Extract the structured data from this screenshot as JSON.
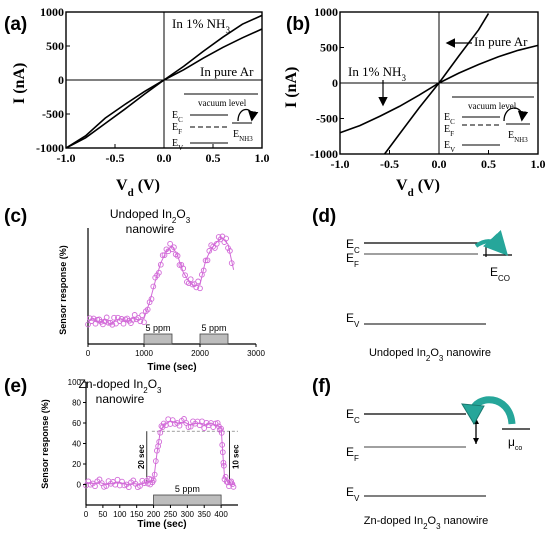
{
  "panels": {
    "a": {
      "label": "(a)",
      "in_nh3": "In 1% NH",
      "nh3_sub": "3",
      "in_ar": "In pure Ar",
      "vacuum": "vacuum level",
      "ec": "E",
      "ec_sub": "C",
      "ef": "E",
      "ef_sub": "F",
      "ev": "E",
      "ev_sub": "V",
      "enh3": "E",
      "enh3_sub": "NH3"
    },
    "b": {
      "label": "(b)",
      "in_nh3": "In 1% NH",
      "nh3_sub": "3",
      "in_ar": "In pure Ar",
      "vacuum": "vacuum level",
      "ec": "E",
      "ec_sub": "C",
      "ef": "E",
      "ef_sub": "F",
      "ev": "E",
      "ev_sub": "V",
      "enh3": "E",
      "enh3_sub": "NH3"
    },
    "c": {
      "label": "(c)",
      "title1": "Undoped In",
      "title_sub": "2",
      "title_mid": "O",
      "title_sub2": "3",
      "title2": "nanowire",
      "bar1": "5 ppm",
      "bar2": "5 ppm"
    },
    "d": {
      "label": "(d)",
      "ec": "E",
      "ec_sub": "C",
      "ef": "E",
      "ef_sub": "F",
      "eco": "E",
      "eco_sub": "CO",
      "ev": "E",
      "ev_sub": "V",
      "caption": "Undoped In",
      "cap_sub": "2",
      "cap_mid": "O",
      "cap_sub2": "3",
      "cap_end": " nanowire"
    },
    "e": {
      "label": "(e)",
      "title1": "Zn-doped In",
      "title_sub": "2",
      "title_mid": "O",
      "title_sub2": "3",
      "title2": "nanowire",
      "bar": "5 ppm",
      "ann1": "20 sec",
      "ann2": "10 sec"
    },
    "f": {
      "label": "(f)",
      "ec": "E",
      "ec_sub": "C",
      "ef": "E",
      "ef_sub": "F",
      "mu": "μ",
      "mu_sub": "co",
      "ev": "E",
      "ev_sub": "V",
      "caption": "Zn-doped In",
      "cap_sub": "2",
      "cap_mid": "O",
      "cap_sub2": "3",
      "cap_end": " nanowire"
    }
  },
  "chart_data": [
    {
      "type": "line",
      "panel": "a",
      "xlabel": "V",
      "xlabel_sub": "d",
      "xlabel_unit": " (V)",
      "ylabel": "I (nA)",
      "xlim": [
        -1.0,
        1.0
      ],
      "ylim": [
        -1000,
        1000
      ],
      "xticks": [
        -1.0,
        -0.5,
        0.0,
        0.5,
        1.0
      ],
      "xtick_labels": [
        "-1.0",
        "-0.5",
        "0.0",
        "0.5",
        "1.0"
      ],
      "yticks": [
        -1000,
        -500,
        0,
        500,
        1000
      ],
      "ytick_labels": [
        "-1000",
        "-500",
        "0",
        "500",
        "1000"
      ],
      "series": [
        {
          "name": "In 1% NH3",
          "x": [
            -1.0,
            -0.8,
            -0.6,
            -0.4,
            -0.2,
            0.0,
            0.2,
            0.4,
            0.6,
            0.8,
            1.0
          ],
          "y": [
            -1000,
            -850,
            -640,
            -430,
            -210,
            0,
            200,
            420,
            630,
            820,
            950
          ]
        },
        {
          "name": "In pure Ar",
          "x": [
            -1.0,
            -0.8,
            -0.6,
            -0.4,
            -0.2,
            0.0,
            0.2,
            0.4,
            0.6,
            0.8,
            1.0
          ],
          "y": [
            -1000,
            -820,
            -560,
            -360,
            -170,
            0,
            150,
            320,
            480,
            620,
            750
          ]
        }
      ]
    },
    {
      "type": "line",
      "panel": "b",
      "xlabel": "V",
      "xlabel_sub": "d",
      "xlabel_unit": " (V)",
      "ylabel": "I (nA)",
      "xlim": [
        -1.0,
        1.0
      ],
      "ylim": [
        -1000,
        1000
      ],
      "xticks": [
        -1.0,
        -0.5,
        0.0,
        0.5,
        1.0
      ],
      "xtick_labels": [
        "-1.0",
        "-0.5",
        "0.0",
        "0.5",
        "1.0"
      ],
      "yticks": [
        -1000,
        -500,
        0,
        500,
        1000
      ],
      "ytick_labels": [
        "-1000",
        "-500",
        "0",
        "500",
        "1000"
      ],
      "series": [
        {
          "name": "In 1% NH3",
          "x": [
            -1.0,
            -0.8,
            -0.6,
            -0.4,
            -0.2,
            0.0,
            0.2,
            0.4,
            0.6,
            0.8,
            1.0
          ],
          "y": [
            -700,
            -600,
            -470,
            -330,
            -170,
            0,
            140,
            260,
            370,
            460,
            530
          ]
        },
        {
          "name": "In pure Ar",
          "x": [
            -0.55,
            -0.4,
            -0.2,
            0.0,
            0.2,
            0.4,
            0.5
          ],
          "y": [
            -1000,
            -720,
            -350,
            0,
            380,
            750,
            980
          ]
        }
      ]
    },
    {
      "type": "scatter",
      "panel": "c",
      "xlabel": "Time (sec)",
      "ylabel": "Sensor response (%)",
      "xlim": [
        0,
        3000
      ],
      "ylim": [
        -5,
        20
      ],
      "xticks": [
        0,
        1000,
        2000,
        3000
      ],
      "xtick_labels": [
        "0",
        "1000",
        "2000",
        "3000"
      ],
      "gas_on": [
        [
          1000,
          1500
        ],
        [
          2000,
          2500
        ]
      ],
      "series": [
        {
          "name": "",
          "x": [
            0,
            100,
            200,
            300,
            400,
            500,
            600,
            700,
            800,
            900,
            1000,
            1100,
            1200,
            1300,
            1400,
            1500,
            1600,
            1700,
            1800,
            1900,
            2000,
            2100,
            2200,
            2300,
            2400,
            2500,
            2600
          ],
          "y": [
            0,
            0.5,
            -0.5,
            0.3,
            -0.8,
            0.2,
            0.4,
            -0.3,
            0.6,
            0.2,
            0.5,
            4,
            8.5,
            12.5,
            15,
            16.2,
            14,
            10.5,
            8.5,
            7.5,
            7.8,
            13,
            15.5,
            17,
            17.8,
            16.5,
            11
          ]
        }
      ]
    },
    {
      "type": "scatter",
      "panel": "e",
      "xlabel": "Time (sec)",
      "ylabel": "Sensor response (%)",
      "xlim": [
        0,
        450
      ],
      "ylim": [
        -20,
        100
      ],
      "xticks": [
        0,
        50,
        100,
        150,
        200,
        250,
        300,
        350,
        400
      ],
      "xtick_labels": [
        "0",
        "50",
        "100",
        "150",
        "200",
        "250",
        "300",
        "350",
        "400"
      ],
      "yticks": [
        0,
        20,
        40,
        60,
        80,
        100
      ],
      "ytick_labels": [
        "0",
        "20",
        "40",
        "60",
        "80",
        "100"
      ],
      "gas_on": [
        [
          200,
          400
        ]
      ],
      "series": [
        {
          "name": "",
          "x": [
            0,
            20,
            40,
            60,
            80,
            100,
            120,
            140,
            160,
            180,
            190,
            200,
            210,
            220,
            230,
            250,
            270,
            290,
            310,
            330,
            350,
            370,
            390,
            400,
            405,
            410,
            420,
            430,
            440
          ],
          "y": [
            2,
            1,
            2,
            0,
            1,
            2,
            0,
            1,
            0,
            2,
            3,
            4,
            30,
            52,
            58,
            62,
            60,
            61,
            58,
            60,
            58,
            60,
            57,
            56,
            30,
            8,
            2,
            0,
            1
          ]
        }
      ]
    }
  ]
}
